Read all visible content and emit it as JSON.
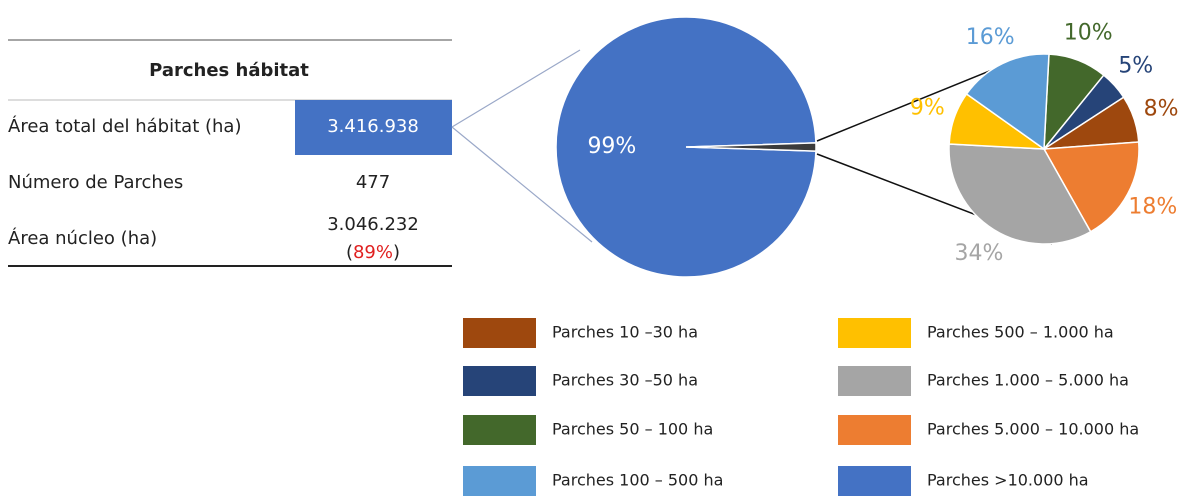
{
  "table": {
    "title": "Parches hábitat",
    "rows": [
      {
        "label": "Área total del hábitat (ha)",
        "value": "3.416.938"
      },
      {
        "label": "Número de Parches",
        "value": "477"
      },
      {
        "label": "Área núcleo (ha)",
        "value": "3.046.232",
        "note": [
          "(",
          "89%",
          ")"
        ]
      }
    ]
  },
  "chart_data": [
    {
      "type": "pie",
      "categories": [
        "Parches >10.000 ha",
        null
      ],
      "values": [
        99,
        1
      ],
      "value_labels": [
        "99%",
        null
      ],
      "colors": [
        "#4472c4",
        "#3b3b3b"
      ]
    },
    {
      "type": "pie",
      "categories": [
        "Parches 50 – 100 ha",
        "Parches 30 –50 ha",
        "Parches 10 –30 ha",
        "Parches 5.000 – 10.000 ha",
        "Parches 1.000 – 5.000 ha",
        "Parches 500 – 1.000 ha",
        "Parches 100 – 500 ha"
      ],
      "values": [
        10,
        5,
        8,
        18,
        34,
        9,
        16
      ],
      "value_labels": [
        "10%",
        "5%",
        "8%",
        "18%",
        "34%",
        "9%",
        "16%"
      ],
      "colors": [
        "#43682b",
        "#264478",
        "#9e480e",
        "#ed7d31",
        "#a5a5a5",
        "#ffc000",
        "#5b9bd5"
      ]
    }
  ]
}
